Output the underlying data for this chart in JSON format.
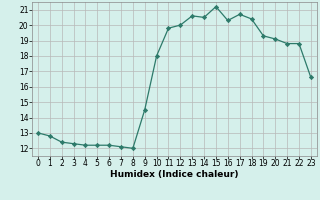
{
  "x": [
    0,
    1,
    2,
    3,
    4,
    5,
    6,
    7,
    8,
    9,
    10,
    11,
    12,
    13,
    14,
    15,
    16,
    17,
    18,
    19,
    20,
    21,
    22,
    23
  ],
  "y": [
    13.0,
    12.8,
    12.4,
    12.3,
    12.2,
    12.2,
    12.2,
    12.1,
    12.0,
    14.5,
    18.0,
    19.8,
    20.0,
    20.6,
    20.5,
    21.2,
    20.3,
    20.7,
    20.4,
    19.3,
    19.1,
    18.8,
    18.8,
    16.6
  ],
  "xlabel": "Humidex (Indice chaleur)",
  "xlim": [
    -0.5,
    23.5
  ],
  "ylim": [
    11.5,
    21.5
  ],
  "yticks": [
    12,
    13,
    14,
    15,
    16,
    17,
    18,
    19,
    20,
    21
  ],
  "xticks": [
    0,
    1,
    2,
    3,
    4,
    5,
    6,
    7,
    8,
    9,
    10,
    11,
    12,
    13,
    14,
    15,
    16,
    17,
    18,
    19,
    20,
    21,
    22,
    23
  ],
  "line_color": "#2d7a6a",
  "marker": "D",
  "marker_size": 2.2,
  "bg_color": "#d5f0eb",
  "grid_color": "#b8b8b8",
  "label_fontsize": 6.5,
  "tick_fontsize": 5.5
}
